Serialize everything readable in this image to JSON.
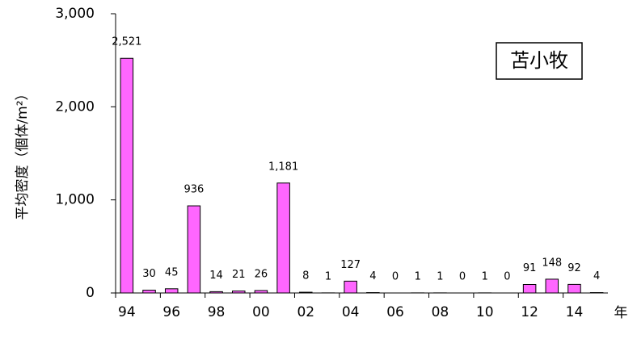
{
  "chart_data": {
    "type": "bar",
    "y_label": "平均密度（個体/m²）",
    "x_label": "年",
    "annotation": "苫小牧",
    "categories": [
      "94",
      null,
      "96",
      null,
      "98",
      null,
      "00",
      null,
      "02",
      null,
      "04",
      null,
      "06",
      null,
      "08",
      null,
      "10",
      null,
      "12",
      null,
      "14",
      null
    ],
    "values": [
      2521,
      30,
      45,
      936,
      14,
      21,
      26,
      1181,
      8,
      1,
      127,
      4,
      0,
      1,
      1,
      0,
      1,
      0,
      91,
      148,
      92,
      4
    ],
    "value_labels": [
      "2,521",
      "30",
      "45",
      "936",
      "14",
      "21",
      "26",
      "1,181",
      "8",
      "1",
      "127",
      "4",
      "0",
      "1",
      "1",
      "0",
      "1",
      "0",
      "91",
      "148",
      "92",
      "4"
    ],
    "color": "#ff66ff",
    "ylim": [
      0,
      3000
    ],
    "yticks": [
      0,
      {
        "value": 1000,
        "label": "1,000"
      },
      {
        "value": 2000,
        "label": "2,000"
      },
      {
        "value": 3000,
        "label": "3,000"
      }
    ],
    "grid": false
  }
}
